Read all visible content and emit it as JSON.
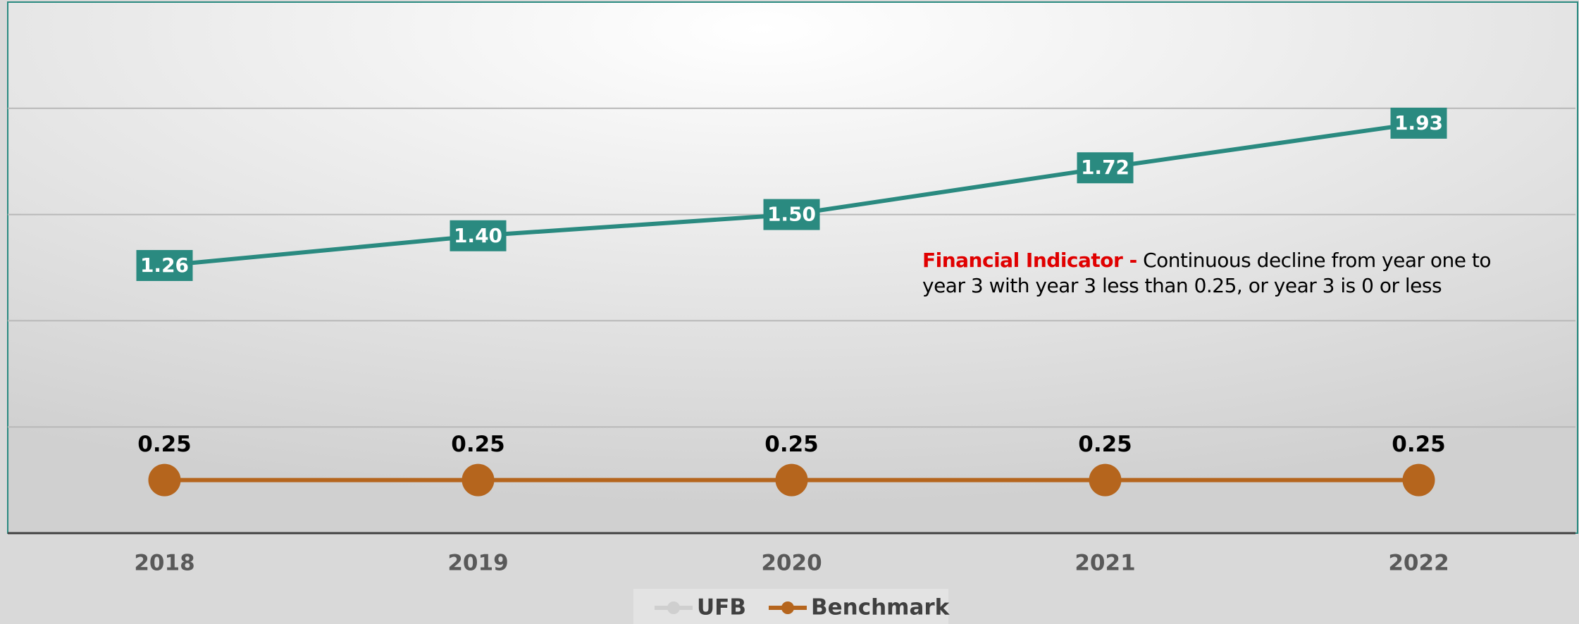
{
  "chart_data": {
    "type": "line",
    "categories": [
      "2018",
      "2019",
      "2020",
      "2021",
      "2022"
    ],
    "series": [
      {
        "name": "UFB",
        "color": "#2a8a80",
        "values": [
          1.26,
          1.4,
          1.5,
          1.72,
          1.93
        ],
        "value_labels": [
          "1.26",
          "1.40",
          "1.50",
          "1.72",
          "1.93"
        ]
      },
      {
        "name": "Benchmark",
        "color": "#b5651d",
        "values": [
          0.25,
          0.25,
          0.25,
          0.25,
          0.25
        ]
      }
    ],
    "ylim": [
      0,
      2.5
    ],
    "yticks": [
      0,
      0.5,
      1,
      1.5,
      2,
      2.5
    ],
    "grid": true,
    "legend": "bottom",
    "annotation": {
      "label": "Financial Indicator -",
      "text": "Continuous decline from year one to year 3 with year 3 less than 0.25, or year 3 is 0 or less"
    }
  }
}
